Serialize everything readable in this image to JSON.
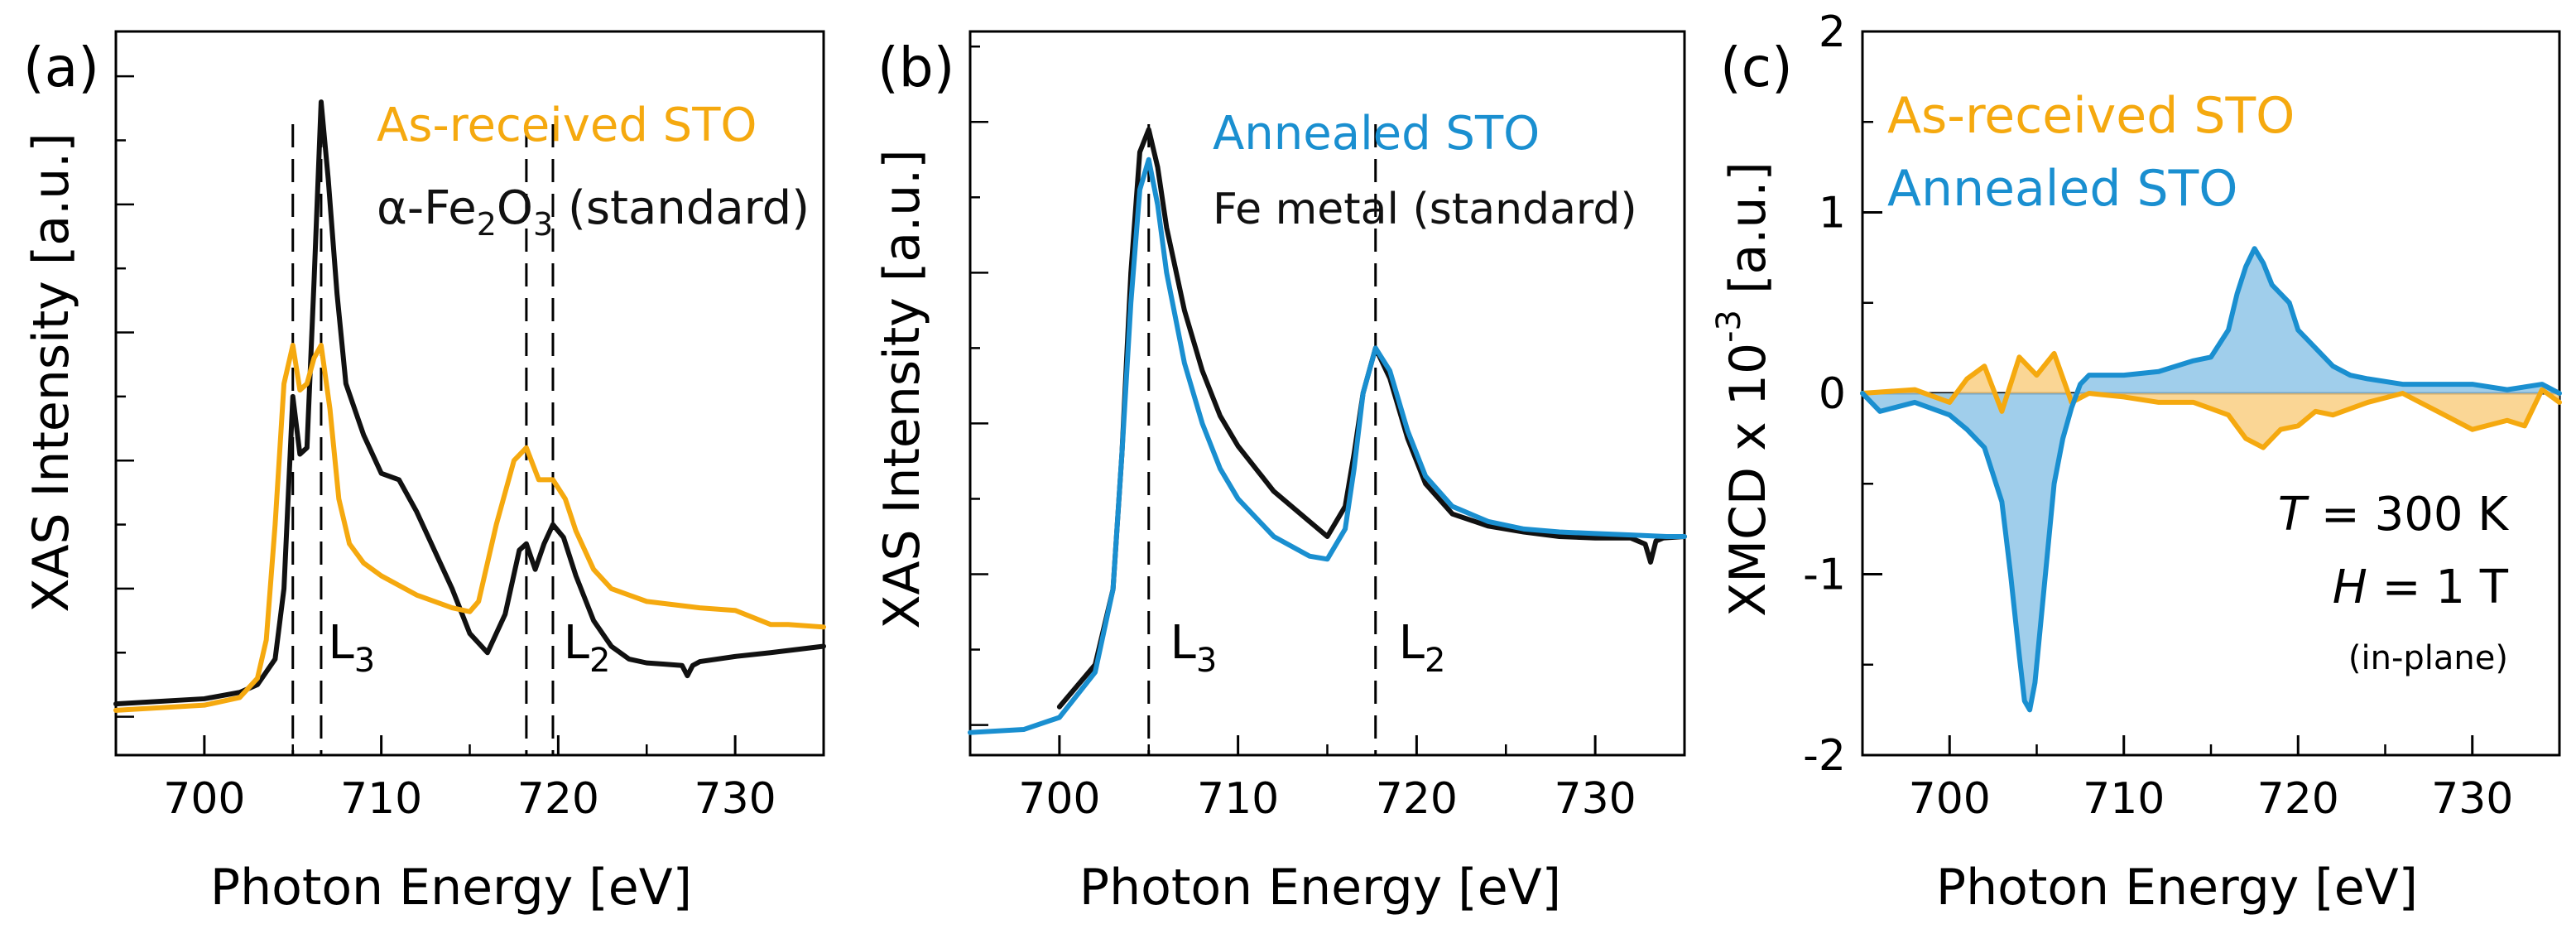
{
  "colors": {
    "orange": "#F5A90F",
    "blue": "#1A8FD0",
    "black": "#111111",
    "fill_blue": "#8FC6E8",
    "fill_orange": "#F9CF83"
  },
  "chart_data": [
    {
      "type": "line",
      "panel_label": "(a)",
      "xlabel": "Photon Energy [eV]",
      "ylabel": "XAS Intensity [a.u.]",
      "xlim": [
        695,
        735
      ],
      "ylim": [
        -0.3,
        5.35
      ],
      "xticks": [
        "700",
        "710",
        "720",
        "730"
      ],
      "yticks_shown_labels": false,
      "legend": [
        {
          "text": "As-received STO",
          "color": "orange"
        },
        {
          "text_parts": [
            "α-Fe",
            "2",
            "O",
            "3",
            " (standard)"
          ],
          "color": "black"
        }
      ],
      "edge_labels": [
        {
          "main": "L",
          "sub": "3",
          "x": 707
        },
        {
          "main": "L",
          "sub": "2",
          "x": 720.3
        }
      ],
      "vlines": [
        705.0,
        706.6,
        718.2,
        719.7
      ],
      "series": [
        {
          "name": "α-Fe2O3 (standard)",
          "color": "black",
          "x": [
            695,
            700,
            702,
            703,
            704,
            704.5,
            705.0,
            705.4,
            705.8,
            706.2,
            706.6,
            707.0,
            707.5,
            708,
            709,
            710,
            711,
            712,
            713,
            714,
            715,
            716,
            717,
            717.8,
            718.2,
            718.7,
            719.2,
            719.7,
            720.3,
            721,
            722,
            723,
            724,
            725,
            726,
            727,
            727.3,
            727.6,
            728,
            730,
            732,
            735
          ],
          "y": [
            0.1,
            0.14,
            0.19,
            0.25,
            0.45,
            1.0,
            2.5,
            2.05,
            2.1,
            3.4,
            4.8,
            4.2,
            3.3,
            2.6,
            2.2,
            1.9,
            1.85,
            1.6,
            1.3,
            1.0,
            0.65,
            0.5,
            0.8,
            1.3,
            1.35,
            1.15,
            1.35,
            1.5,
            1.4,
            1.1,
            0.75,
            0.55,
            0.45,
            0.42,
            0.41,
            0.4,
            0.32,
            0.4,
            0.43,
            0.47,
            0.5,
            0.55
          ]
        },
        {
          "name": "As-received STO",
          "color": "orange",
          "x": [
            695,
            700,
            702,
            703,
            703.5,
            704,
            704.5,
            705.0,
            705.4,
            705.8,
            706.2,
            706.6,
            707.1,
            707.6,
            708.2,
            709,
            710,
            712,
            714,
            715,
            715.5,
            716,
            716.5,
            717,
            717.5,
            718.2,
            718.9,
            719.7,
            720.4,
            721,
            722,
            723,
            725,
            728,
            730,
            732,
            733,
            735
          ],
          "y": [
            0.05,
            0.09,
            0.15,
            0.3,
            0.6,
            1.5,
            2.6,
            2.9,
            2.55,
            2.6,
            2.8,
            2.9,
            2.4,
            1.7,
            1.35,
            1.2,
            1.1,
            0.95,
            0.85,
            0.82,
            0.9,
            1.2,
            1.5,
            1.75,
            2.0,
            2.1,
            1.85,
            1.85,
            1.7,
            1.45,
            1.15,
            1.0,
            0.9,
            0.85,
            0.83,
            0.72,
            0.72,
            0.7
          ]
        }
      ]
    },
    {
      "type": "line",
      "panel_label": "(b)",
      "xlabel": "Photon Energy [eV]",
      "ylabel": "XAS Intensity [a.u.]",
      "xlim": [
        695,
        735
      ],
      "ylim": [
        -0.2,
        4.6
      ],
      "xticks": [
        "700",
        "710",
        "720",
        "730"
      ],
      "yticks_shown_labels": false,
      "legend": [
        {
          "text": "Annealed STO",
          "color": "blue"
        },
        {
          "text": "Fe metal (standard)",
          "color": "black"
        }
      ],
      "edge_labels": [
        {
          "main": "L",
          "sub": "3",
          "x": 706.2
        },
        {
          "main": "L",
          "sub": "2",
          "x": 719
        }
      ],
      "vlines": [
        705.0,
        717.7
      ],
      "series": [
        {
          "name": "Fe metal (standard)",
          "color": "black",
          "x": [
            700,
            702,
            703,
            703.5,
            704,
            704.5,
            705.0,
            705.5,
            706,
            707,
            708,
            709,
            710,
            712,
            714,
            715,
            716,
            716.5,
            717,
            717.7,
            718.5,
            719.5,
            720.5,
            722,
            724,
            726,
            728,
            730,
            732,
            732.8,
            733.1,
            733.4,
            733.8,
            735
          ],
          "y": [
            0.12,
            0.4,
            0.9,
            1.8,
            3.0,
            3.8,
            3.95,
            3.7,
            3.3,
            2.75,
            2.35,
            2.05,
            1.85,
            1.55,
            1.35,
            1.25,
            1.45,
            1.8,
            2.2,
            2.5,
            2.3,
            1.9,
            1.6,
            1.4,
            1.32,
            1.28,
            1.25,
            1.24,
            1.24,
            1.2,
            1.08,
            1.22,
            1.24,
            1.25
          ]
        },
        {
          "name": "Annealed STO",
          "color": "blue",
          "x": [
            695,
            698,
            700,
            702,
            703,
            703.5,
            704,
            704.5,
            705.0,
            705.5,
            706,
            707,
            708,
            709,
            710,
            712,
            714,
            715,
            716,
            716.5,
            717,
            717.7,
            718.5,
            719.5,
            720.5,
            722,
            724,
            726,
            728,
            730,
            732,
            734,
            735
          ],
          "y": [
            -0.05,
            -0.03,
            0.05,
            0.35,
            0.9,
            1.8,
            2.8,
            3.55,
            3.75,
            3.45,
            3.0,
            2.4,
            2.0,
            1.7,
            1.5,
            1.25,
            1.12,
            1.1,
            1.3,
            1.7,
            2.2,
            2.5,
            2.35,
            1.95,
            1.65,
            1.45,
            1.35,
            1.3,
            1.28,
            1.27,
            1.26,
            1.25,
            1.25
          ]
        }
      ]
    },
    {
      "type": "line",
      "panel_label": "(c)",
      "xlabel": "Photon Energy [eV]",
      "ylabel_parts": [
        "XMCD x 10",
        "-3",
        " [a.u.]"
      ],
      "xlim": [
        695,
        735
      ],
      "ylim": [
        -2,
        2
      ],
      "xticks": [
        "700",
        "710",
        "720",
        "730"
      ],
      "yticks": [
        "-2",
        "-1",
        "0",
        "1",
        "2"
      ],
      "legend": [
        {
          "text": "As-received STO",
          "color": "orange"
        },
        {
          "text": "Annealed STO",
          "color": "blue"
        }
      ],
      "annotation": [
        {
          "italic": "T",
          "rest": " = 300 K"
        },
        {
          "italic": "H",
          "rest": " = 1 T"
        },
        {
          "italic": "",
          "rest": "(in-plane)"
        }
      ],
      "series": [
        {
          "name": "As-received STO",
          "color": "orange",
          "filled": true,
          "x": [
            695,
            698,
            700,
            701,
            702,
            703,
            704,
            705,
            706,
            707,
            708,
            710,
            712,
            714,
            716,
            717,
            718,
            719,
            720,
            721,
            722,
            724,
            726,
            728,
            730,
            732,
            733,
            734,
            735
          ],
          "y": [
            0.0,
            0.02,
            -0.05,
            0.08,
            0.15,
            -0.1,
            0.2,
            0.1,
            0.22,
            -0.05,
            0.0,
            -0.02,
            -0.05,
            -0.05,
            -0.12,
            -0.25,
            -0.3,
            -0.2,
            -0.18,
            -0.1,
            -0.12,
            -0.05,
            0.0,
            -0.1,
            -0.2,
            -0.15,
            -0.18,
            0.02,
            -0.05
          ]
        },
        {
          "name": "Annealed STO",
          "color": "blue",
          "filled": true,
          "x": [
            695,
            696,
            698,
            700,
            701,
            702,
            703,
            703.5,
            704,
            704.3,
            704.6,
            704.9,
            705.2,
            705.6,
            706,
            706.5,
            707,
            707.5,
            708,
            710,
            712,
            714,
            715,
            716,
            716.5,
            717,
            717.5,
            718,
            718.5,
            719,
            719.5,
            720,
            721,
            722,
            723,
            724,
            726,
            728,
            730,
            732,
            734,
            735
          ],
          "y": [
            0.0,
            -0.1,
            -0.05,
            -0.12,
            -0.2,
            -0.3,
            -0.6,
            -1.0,
            -1.45,
            -1.7,
            -1.75,
            -1.6,
            -1.3,
            -0.9,
            -0.5,
            -0.25,
            -0.08,
            0.05,
            0.1,
            0.1,
            0.12,
            0.18,
            0.2,
            0.35,
            0.55,
            0.7,
            0.8,
            0.72,
            0.6,
            0.55,
            0.5,
            0.35,
            0.25,
            0.15,
            0.1,
            0.08,
            0.05,
            0.05,
            0.05,
            0.02,
            0.05,
            0.0
          ]
        }
      ]
    }
  ]
}
